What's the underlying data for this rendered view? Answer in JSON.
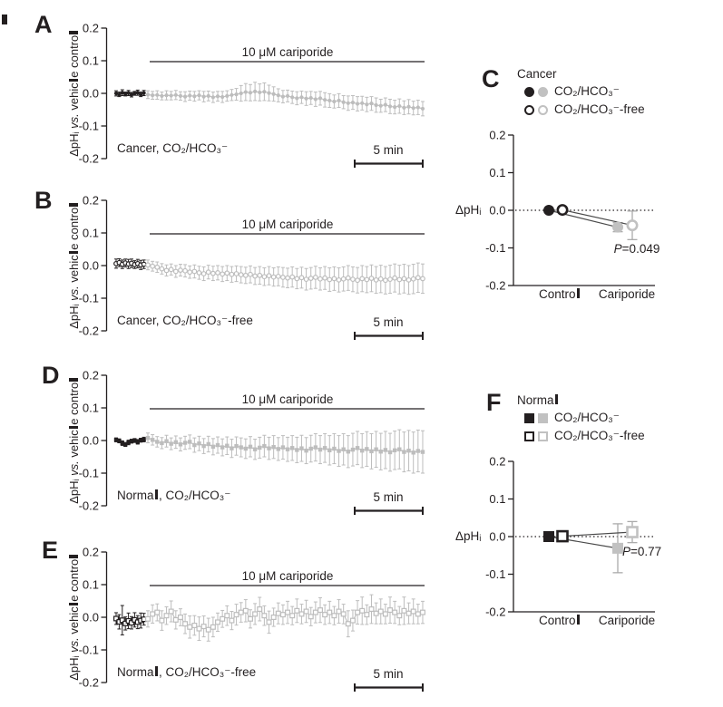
{
  "figure": {
    "background": "#ffffff",
    "colors": {
      "black": "#231f20",
      "gray": "#bdbdbd",
      "gray_fill": "#c1c1c1",
      "gray_err": "#ababab",
      "line_dark": "#4a4a4a"
    },
    "shared": {
      "ylabel_timecourse": "ΔpHᵢ vs. vehicle control",
      "ylabel_summary": "ΔpHᵢ",
      "yticks": [
        "0.2",
        "0.1",
        "0.0",
        "-0.1",
        "-0.2"
      ],
      "ytick_values": [
        0.2,
        0.1,
        0.0,
        -0.1,
        -0.2
      ],
      "treatment_label": "10 μM cariporide",
      "scalebar_label": "5 min",
      "categories": [
        "Control",
        "Cariporide"
      ]
    }
  },
  "chart_data": [
    {
      "panel": "A",
      "type": "line",
      "kind": "timecourse",
      "condition_label": "Cancer, CO₂/HCO₃⁻",
      "ylabel": "ΔpHᵢ vs. vehicle control",
      "ylim": [
        -0.2,
        0.2
      ],
      "yticks": [
        "0.2",
        "0.1",
        "0.0",
        "-0.1",
        "-0.2"
      ],
      "ytick_values": [
        0.2,
        0.1,
        0.0,
        -0.1,
        -0.2
      ],
      "treatment_label": "10 μM cariporide",
      "scalebar_label": "5 min",
      "marker": "circle",
      "marker_fill": "filled",
      "series": [
        {
          "name": "baseline",
          "color_key": "black",
          "values": [
            0.0,
            -0.003,
            0.002,
            -0.002,
            0.001,
            -0.004,
            0.0,
            0.002,
            -0.003,
            0.001
          ],
          "errors": [
            0.008,
            0.007,
            0.009,
            0.006,
            0.008,
            0.007,
            0.006,
            0.008,
            0.007,
            0.008
          ]
        },
        {
          "name": "cariporide",
          "color_key": "gray",
          "values": [
            -0.004,
            -0.006,
            -0.005,
            -0.008,
            -0.006,
            -0.007,
            -0.005,
            -0.008,
            -0.01,
            -0.007,
            -0.009,
            -0.006,
            -0.01,
            -0.008,
            -0.012,
            -0.009,
            -0.011,
            -0.008,
            -0.005,
            -0.003,
            0.0,
            0.004,
            0.002,
            0.006,
            0.003,
            0.005,
            0.001,
            -0.002,
            -0.006,
            -0.01,
            -0.008,
            -0.012,
            -0.015,
            -0.012,
            -0.016,
            -0.014,
            -0.018,
            -0.015,
            -0.02,
            -0.022,
            -0.025,
            -0.022,
            -0.027,
            -0.03,
            -0.028,
            -0.032,
            -0.03,
            -0.034,
            -0.031,
            -0.036,
            -0.038,
            -0.035,
            -0.04,
            -0.042,
            -0.039,
            -0.044,
            -0.041,
            -0.045,
            -0.043,
            -0.047
          ],
          "errors": [
            0.012,
            0.012,
            0.013,
            0.012,
            0.014,
            0.013,
            0.014,
            0.013,
            0.015,
            0.014,
            0.015,
            0.014,
            0.016,
            0.015,
            0.016,
            0.015,
            0.017,
            0.016,
            0.017,
            0.018,
            0.024,
            0.026,
            0.025,
            0.028,
            0.026,
            0.027,
            0.024,
            0.022,
            0.02,
            0.019,
            0.018,
            0.019,
            0.02,
            0.019,
            0.021,
            0.02,
            0.022,
            0.021,
            0.022,
            0.021,
            0.02,
            0.021,
            0.02,
            0.022,
            0.021,
            0.022,
            0.021,
            0.022,
            0.021,
            0.022,
            0.02,
            0.021,
            0.022,
            0.021,
            0.022,
            0.021,
            0.022,
            0.021,
            0.022,
            0.022
          ]
        }
      ]
    },
    {
      "panel": "B",
      "type": "line",
      "kind": "timecourse",
      "condition_label": "Cancer, CO₂/HCO₃⁻-free",
      "ylabel": "ΔpHᵢ vs. vehicle control",
      "ylim": [
        -0.2,
        0.2
      ],
      "yticks": [
        "0.2",
        "0.1",
        "0.0",
        "-0.1",
        "-0.2"
      ],
      "ytick_values": [
        0.2,
        0.1,
        0.0,
        -0.1,
        -0.2
      ],
      "treatment_label": "10 μM cariporide",
      "scalebar_label": "5 min",
      "marker": "circle",
      "marker_fill": "open",
      "series": [
        {
          "name": "baseline",
          "color_key": "black",
          "values": [
            0.006,
            0.009,
            0.004,
            0.008,
            0.005,
            0.007,
            0.003,
            0.006,
            0.002,
            0.004
          ],
          "errors": [
            0.014,
            0.012,
            0.013,
            0.012,
            0.014,
            0.013,
            0.012,
            0.013,
            0.014,
            0.013
          ]
        },
        {
          "name": "cariporide",
          "color_key": "gray",
          "values": [
            0.002,
            -0.002,
            -0.005,
            -0.01,
            -0.015,
            -0.012,
            -0.018,
            -0.014,
            -0.016,
            -0.02,
            -0.018,
            -0.022,
            -0.025,
            -0.02,
            -0.024,
            -0.022,
            -0.026,
            -0.023,
            -0.027,
            -0.025,
            -0.028,
            -0.03,
            -0.027,
            -0.032,
            -0.03,
            -0.034,
            -0.031,
            -0.035,
            -0.033,
            -0.036,
            -0.038,
            -0.035,
            -0.04,
            -0.037,
            -0.042,
            -0.039,
            -0.036,
            -0.041,
            -0.038,
            -0.043,
            -0.04,
            -0.044,
            -0.041,
            -0.038,
            -0.042,
            -0.045,
            -0.04,
            -0.043,
            -0.039,
            -0.044,
            -0.041,
            -0.045,
            -0.042,
            -0.038,
            -0.043,
            -0.04,
            -0.044,
            -0.041,
            -0.037,
            -0.04
          ],
          "errors": [
            0.015,
            0.015,
            0.016,
            0.016,
            0.017,
            0.017,
            0.018,
            0.018,
            0.019,
            0.019,
            0.02,
            0.02,
            0.021,
            0.021,
            0.022,
            0.022,
            0.023,
            0.023,
            0.024,
            0.024,
            0.025,
            0.025,
            0.026,
            0.026,
            0.027,
            0.027,
            0.028,
            0.028,
            0.029,
            0.03,
            0.03,
            0.031,
            0.031,
            0.032,
            0.033,
            0.033,
            0.034,
            0.034,
            0.035,
            0.036,
            0.036,
            0.037,
            0.037,
            0.038,
            0.038,
            0.039,
            0.04,
            0.04,
            0.041,
            0.041,
            0.042,
            0.042,
            0.043,
            0.043,
            0.044,
            0.044,
            0.044,
            0.045,
            0.045,
            0.045
          ]
        }
      ]
    },
    {
      "panel": "C",
      "type": "scatter",
      "kind": "summary",
      "group_label": "Cancer",
      "ylabel": "ΔpHᵢ",
      "ylim": [
        -0.2,
        0.2
      ],
      "yticks": [
        "0.2",
        "0.1",
        "0.0",
        "-0.1",
        "-0.2"
      ],
      "ytick_values": [
        0.2,
        0.1,
        0.0,
        -0.1,
        -0.2
      ],
      "categories": [
        "Control",
        "Cariporide"
      ],
      "marker": "circle",
      "legend": [
        {
          "label": "CO₂/HCO₃⁻",
          "style": "filled"
        },
        {
          "label": "CO₂/HCO₃⁻-free",
          "style": "open"
        }
      ],
      "series": [
        {
          "name": "CO₂/HCO₃⁻",
          "style": "filled",
          "points": [
            {
              "category": "Control",
              "value": 0.0,
              "error": 0.004
            },
            {
              "category": "Cariporide",
              "value": -0.045,
              "error": 0.012
            }
          ]
        },
        {
          "name": "CO₂/HCO₃⁻-free",
          "style": "open",
          "points": [
            {
              "category": "Control",
              "value": 0.001,
              "error": 0.005
            },
            {
              "category": "Cariporide",
              "value": -0.04,
              "error": 0.038
            }
          ]
        }
      ],
      "p_value": "P=0.049"
    },
    {
      "panel": "D",
      "type": "line",
      "kind": "timecourse",
      "condition_label": "Normal, CO₂/HCO₃⁻",
      "ylabel": "ΔpHᵢ vs. vehicle control",
      "ylim": [
        -0.2,
        0.2
      ],
      "yticks": [
        "0.2",
        "0.1",
        "0.0",
        "-0.1",
        "-0.2"
      ],
      "ytick_values": [
        0.2,
        0.1,
        0.0,
        -0.1,
        -0.2
      ],
      "treatment_label": "10 μM cariporide",
      "scalebar_label": "5 min",
      "marker": "square",
      "marker_fill": "filled",
      "series": [
        {
          "name": "baseline",
          "color_key": "black",
          "values": [
            0.002,
            -0.001,
            -0.008,
            -0.012,
            -0.006,
            -0.002,
            0.0,
            -0.004,
            0.001,
            0.003
          ],
          "errors": [
            0.006,
            0.006,
            0.007,
            0.006,
            0.007,
            0.006,
            0.006,
            0.007,
            0.006,
            0.007
          ]
        },
        {
          "name": "cariporide",
          "color_key": "gray",
          "values": [
            0.008,
            0.002,
            -0.004,
            -0.008,
            -0.002,
            -0.01,
            -0.005,
            -0.012,
            -0.007,
            -0.004,
            -0.014,
            -0.009,
            -0.017,
            -0.011,
            -0.019,
            -0.014,
            -0.021,
            -0.016,
            -0.024,
            -0.017,
            -0.021,
            -0.025,
            -0.019,
            -0.027,
            -0.022,
            -0.017,
            -0.024,
            -0.02,
            -0.026,
            -0.021,
            -0.027,
            -0.023,
            -0.029,
            -0.024,
            -0.031,
            -0.025,
            -0.021,
            -0.028,
            -0.023,
            -0.03,
            -0.025,
            -0.032,
            -0.027,
            -0.034,
            -0.028,
            -0.023,
            -0.031,
            -0.026,
            -0.033,
            -0.027,
            -0.034,
            -0.029,
            -0.036,
            -0.03,
            -0.027,
            -0.035,
            -0.031,
            -0.037,
            -0.032,
            -0.035
          ],
          "errors": [
            0.015,
            0.016,
            0.016,
            0.017,
            0.018,
            0.018,
            0.019,
            0.02,
            0.02,
            0.021,
            0.022,
            0.022,
            0.023,
            0.024,
            0.025,
            0.025,
            0.026,
            0.027,
            0.028,
            0.028,
            0.029,
            0.03,
            0.031,
            0.031,
            0.032,
            0.033,
            0.034,
            0.035,
            0.035,
            0.036,
            0.037,
            0.038,
            0.039,
            0.04,
            0.04,
            0.041,
            0.042,
            0.043,
            0.044,
            0.045,
            0.046,
            0.047,
            0.048,
            0.049,
            0.05,
            0.051,
            0.052,
            0.053,
            0.054,
            0.055,
            0.056,
            0.057,
            0.058,
            0.059,
            0.06,
            0.061,
            0.062,
            0.063,
            0.064,
            0.065
          ]
        }
      ]
    },
    {
      "panel": "E",
      "type": "line",
      "kind": "timecourse",
      "condition_label": "Normal, CO₂/HCO₃⁻-free",
      "ylabel": "ΔpHᵢ vs. vehicle control",
      "ylim": [
        -0.2,
        0.2
      ],
      "yticks": [
        "0.2",
        "0.1",
        "0.0",
        "-0.1",
        "-0.2"
      ],
      "ytick_values": [
        0.2,
        0.1,
        0.0,
        -0.1,
        -0.2
      ],
      "treatment_label": "10 μM cariporide",
      "scalebar_label": "5 min",
      "marker": "square",
      "marker_fill": "open",
      "series": [
        {
          "name": "baseline",
          "color_key": "black",
          "values": [
            -0.004,
            -0.014,
            -0.009,
            -0.019,
            -0.011,
            -0.017,
            -0.008,
            -0.015,
            -0.01,
            -0.006
          ],
          "errors": [
            0.018,
            0.022,
            0.045,
            0.02,
            0.024,
            0.019,
            0.022,
            0.02,
            0.023,
            0.018
          ]
        },
        {
          "name": "cariporide",
          "color_key": "gray",
          "values": [
            -0.005,
            0.01,
            0.015,
            -0.01,
            0.005,
            0.018,
            -0.008,
            0.0,
            -0.02,
            -0.03,
            -0.025,
            -0.035,
            -0.028,
            -0.038,
            -0.03,
            -0.015,
            -0.005,
            0.005,
            -0.01,
            0.008,
            0.015,
            0.02,
            -0.005,
            0.01,
            0.025,
            0.005,
            -0.015,
            0.0,
            0.012,
            0.008,
            0.015,
            0.005,
            0.02,
            0.01,
            0.018,
            0.002,
            0.015,
            0.022,
            0.008,
            0.015,
            0.005,
            0.018,
            0.01,
            -0.02,
            -0.01,
            0.015,
            0.02,
            0.008,
            0.025,
            0.012,
            0.018,
            0.01,
            0.022,
            0.015,
            0.005,
            0.02,
            0.012,
            0.018,
            0.01,
            0.015
          ],
          "errors": [
            0.025,
            0.028,
            0.026,
            0.03,
            0.027,
            0.032,
            0.028,
            0.026,
            0.03,
            0.034,
            0.03,
            0.036,
            0.032,
            0.035,
            0.03,
            0.028,
            0.026,
            0.03,
            0.028,
            0.032,
            0.03,
            0.034,
            0.028,
            0.032,
            0.036,
            0.03,
            0.034,
            0.028,
            0.032,
            0.03,
            0.034,
            0.028,
            0.036,
            0.03,
            0.034,
            0.028,
            0.032,
            0.038,
            0.03,
            0.034,
            0.028,
            0.036,
            0.03,
            0.04,
            0.032,
            0.036,
            0.042,
            0.03,
            0.044,
            0.032,
            0.038,
            0.03,
            0.04,
            0.034,
            0.028,
            0.042,
            0.032,
            0.038,
            0.03,
            0.034
          ]
        }
      ]
    },
    {
      "panel": "F",
      "type": "scatter",
      "kind": "summary",
      "group_label": "Normal",
      "ylabel": "ΔpHᵢ",
      "ylim": [
        -0.2,
        0.2
      ],
      "yticks": [
        "0.2",
        "0.1",
        "0.0",
        "-0.1",
        "-0.2"
      ],
      "ytick_values": [
        0.2,
        0.1,
        0.0,
        -0.1,
        -0.2
      ],
      "categories": [
        "Control",
        "Cariporide"
      ],
      "marker": "square",
      "legend": [
        {
          "label": "CO₂/HCO₃⁻",
          "style": "filled"
        },
        {
          "label": "CO₂/HCO₃⁻-free",
          "style": "open"
        }
      ],
      "series": [
        {
          "name": "CO₂/HCO₃⁻",
          "style": "filled",
          "points": [
            {
              "category": "Control",
              "value": 0.0,
              "error": 0.004
            },
            {
              "category": "Cariporide",
              "value": -0.031,
              "error": 0.065
            }
          ]
        },
        {
          "name": "CO₂/HCO₃⁻-free",
          "style": "open",
          "points": [
            {
              "category": "Control",
              "value": 0.001,
              "error": 0.005
            },
            {
              "category": "Cariporide",
              "value": 0.012,
              "error": 0.028
            }
          ]
        }
      ],
      "p_value": "P=0.77"
    }
  ]
}
